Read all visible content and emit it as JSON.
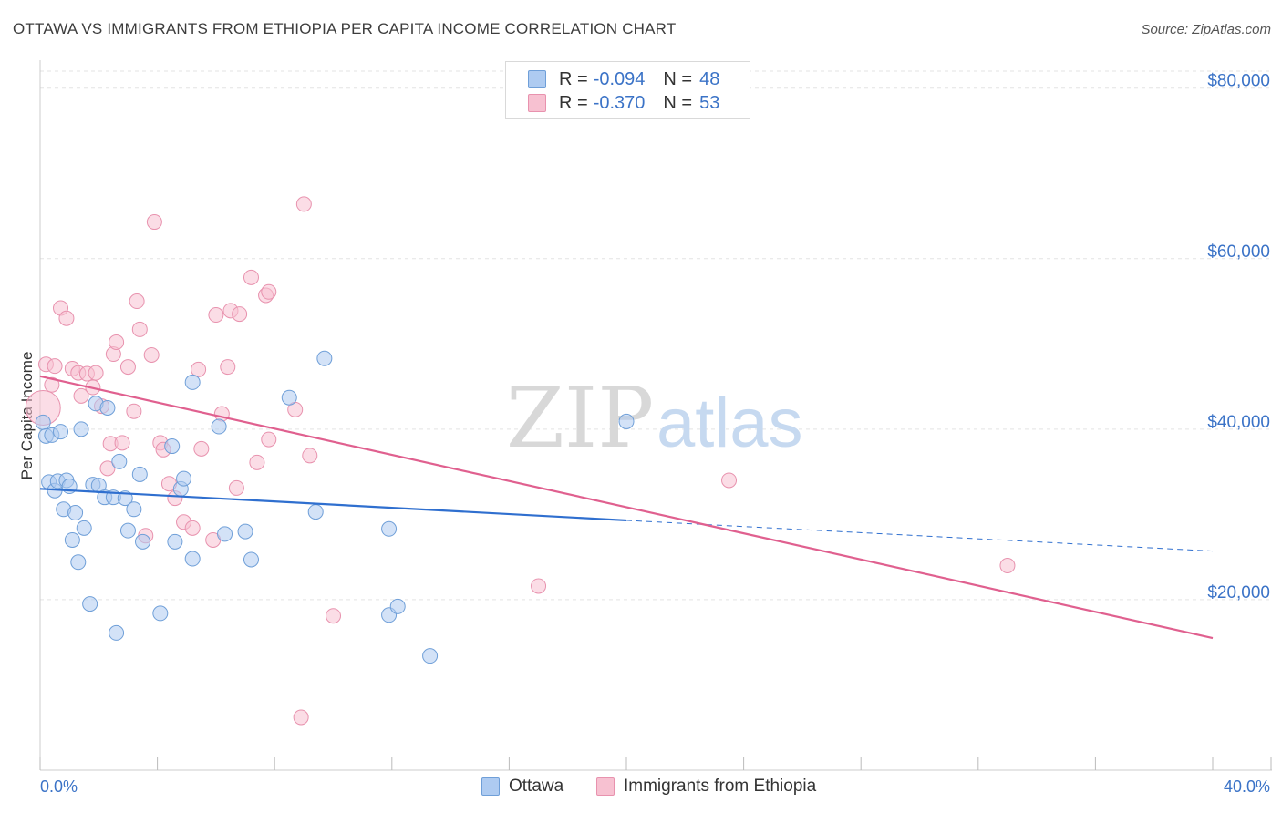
{
  "title": "OTTAWA VS IMMIGRANTS FROM ETHIOPIA PER CAPITA INCOME CORRELATION CHART",
  "source": "Source: ZipAtlas.com",
  "watermark": {
    "zip": "ZIP",
    "atlas": "atlas"
  },
  "legend": {
    "rows": [
      {
        "r_label": "R =",
        "r_value": "-0.094",
        "n_label": "N =",
        "n_value": "48"
      },
      {
        "r_label": "R =",
        "r_value": "-0.370",
        "n_label": "N =",
        "n_value": "53"
      }
    ]
  },
  "colors": {
    "ottawa_fill": "#aecbf1",
    "ottawa_stroke": "#6f9fd8",
    "ottawa_line": "#2f6fcf",
    "ethiopia_fill": "#f7c1d1",
    "ethiopia_stroke": "#e892ae",
    "ethiopia_line": "#e0608f",
    "tick_text": "#3b73c7",
    "grid": "#e3e3e3"
  },
  "chart_data": {
    "type": "scatter",
    "title": "OTTAWA VS IMMIGRANTS FROM ETHIOPIA PER CAPITA INCOME CORRELATION CHART",
    "xlabel": "",
    "ylabel": "Per Capita Income",
    "xlim": [
      0,
      40
    ],
    "ylim": [
      0,
      82000
    ],
    "x_ticks": [
      "0.0%",
      "40.0%"
    ],
    "y_ticks": [
      {
        "value": 20000,
        "label": "$20,000"
      },
      {
        "value": 40000,
        "label": "$40,000"
      },
      {
        "value": 60000,
        "label": "$60,000"
      },
      {
        "value": 80000,
        "label": "$80,000"
      }
    ],
    "grid": "horizontal dashed",
    "legend_position": "top-center",
    "series": [
      {
        "name": "Ottawa",
        "r": -0.094,
        "n": 48,
        "trend": {
          "x": [
            0,
            20
          ],
          "y": [
            33000,
            29300
          ],
          "extended_to": [
            40,
            25700
          ]
        },
        "points": [
          [
            0.1,
            40800
          ],
          [
            0.2,
            39200
          ],
          [
            0.3,
            33800
          ],
          [
            0.4,
            39300
          ],
          [
            0.5,
            32800
          ],
          [
            0.6,
            33900
          ],
          [
            0.7,
            39700
          ],
          [
            0.8,
            30600
          ],
          [
            0.9,
            34000
          ],
          [
            1.0,
            33300
          ],
          [
            1.1,
            27000
          ],
          [
            1.2,
            30200
          ],
          [
            1.3,
            24400
          ],
          [
            1.4,
            40000
          ],
          [
            1.5,
            28400
          ],
          [
            1.7,
            19500
          ],
          [
            1.8,
            33500
          ],
          [
            1.9,
            43000
          ],
          [
            2.0,
            33400
          ],
          [
            2.2,
            32000
          ],
          [
            2.3,
            42500
          ],
          [
            2.5,
            32000
          ],
          [
            2.6,
            16100
          ],
          [
            2.7,
            36200
          ],
          [
            2.9,
            31900
          ],
          [
            3.0,
            28100
          ],
          [
            3.2,
            30600
          ],
          [
            3.4,
            34700
          ],
          [
            3.5,
            26800
          ],
          [
            4.1,
            18400
          ],
          [
            4.5,
            38000
          ],
          [
            4.6,
            26800
          ],
          [
            4.8,
            33000
          ],
          [
            4.9,
            34200
          ],
          [
            5.2,
            45500
          ],
          [
            5.2,
            24800
          ],
          [
            6.1,
            40300
          ],
          [
            6.3,
            27700
          ],
          [
            7.0,
            28000
          ],
          [
            7.2,
            24700
          ],
          [
            8.5,
            43700
          ],
          [
            9.4,
            30300
          ],
          [
            9.7,
            48300
          ],
          [
            11.9,
            28300
          ],
          [
            11.9,
            18200
          ],
          [
            12.2,
            19200
          ],
          [
            13.3,
            13400
          ],
          [
            20.0,
            40900
          ]
        ]
      },
      {
        "name": "Immigrants from Ethiopia",
        "r": -0.37,
        "n": 53,
        "trend": {
          "x": [
            0,
            40
          ],
          "y": [
            46200,
            15500
          ]
        },
        "points": [
          [
            0.1,
            42500
          ],
          [
            0.2,
            47600
          ],
          [
            0.4,
            45200
          ],
          [
            0.5,
            47400
          ],
          [
            0.7,
            54200
          ],
          [
            0.9,
            53000
          ],
          [
            1.1,
            47100
          ],
          [
            1.3,
            46600
          ],
          [
            1.4,
            43900
          ],
          [
            1.6,
            46500
          ],
          [
            1.8,
            44900
          ],
          [
            1.9,
            46600
          ],
          [
            2.1,
            42700
          ],
          [
            2.3,
            35400
          ],
          [
            2.4,
            38300
          ],
          [
            2.5,
            48800
          ],
          [
            2.6,
            50200
          ],
          [
            2.8,
            38400
          ],
          [
            3.0,
            47300
          ],
          [
            3.2,
            42100
          ],
          [
            3.3,
            55000
          ],
          [
            3.4,
            51700
          ],
          [
            3.6,
            27500
          ],
          [
            3.8,
            48700
          ],
          [
            3.9,
            64300
          ],
          [
            4.1,
            38400
          ],
          [
            4.2,
            37600
          ],
          [
            4.4,
            33600
          ],
          [
            4.6,
            31900
          ],
          [
            4.9,
            29100
          ],
          [
            5.2,
            28400
          ],
          [
            5.4,
            47000
          ],
          [
            5.5,
            37700
          ],
          [
            5.9,
            27000
          ],
          [
            6.0,
            53400
          ],
          [
            6.2,
            41800
          ],
          [
            6.4,
            47300
          ],
          [
            6.5,
            53900
          ],
          [
            6.7,
            33100
          ],
          [
            6.8,
            53500
          ],
          [
            7.2,
            57800
          ],
          [
            7.4,
            36100
          ],
          [
            7.7,
            55700
          ],
          [
            7.8,
            38800
          ],
          [
            7.8,
            56100
          ],
          [
            8.7,
            42300
          ],
          [
            8.9,
            6200
          ],
          [
            9.0,
            66400
          ],
          [
            9.2,
            36900
          ],
          [
            10.0,
            18100
          ],
          [
            17.0,
            21600
          ],
          [
            23.5,
            34000
          ],
          [
            33.0,
            24000
          ]
        ]
      }
    ]
  },
  "bottom_legend": {
    "items": [
      {
        "label": "Ottawa"
      },
      {
        "label": "Immigrants from Ethiopia"
      }
    ]
  }
}
